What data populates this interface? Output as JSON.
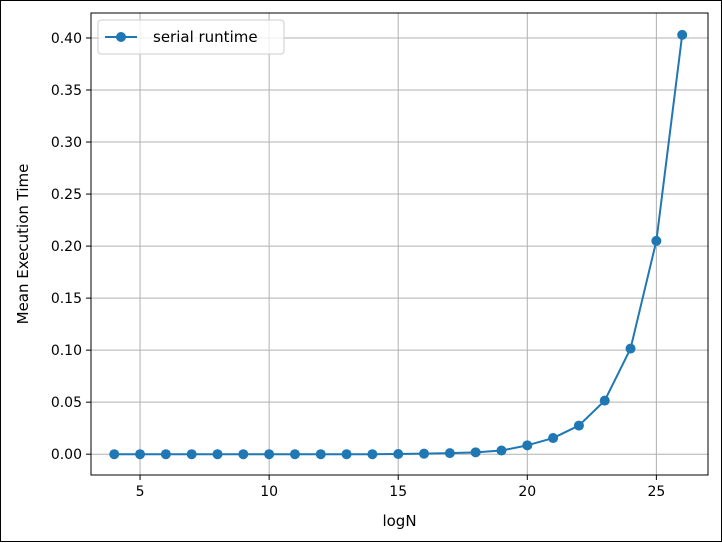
{
  "chart_data": {
    "type": "line",
    "title": "",
    "xlabel": "logN",
    "ylabel": "Mean Execution Time",
    "xlim": [
      3.1,
      27.0
    ],
    "ylim": [
      -0.02,
      0.424
    ],
    "grid": true,
    "legend_placement": "top-left",
    "x_ticks": [
      5,
      10,
      15,
      20,
      25
    ],
    "x_tick_labels": [
      "5",
      "10",
      "15",
      "20",
      "25"
    ],
    "y_ticks": [
      0.0,
      0.05,
      0.1,
      0.15,
      0.2,
      0.25,
      0.3,
      0.35,
      0.4
    ],
    "y_tick_labels": [
      "0.00",
      "0.05",
      "0.10",
      "0.15",
      "0.20",
      "0.25",
      "0.30",
      "0.35",
      "0.40"
    ],
    "series": [
      {
        "name": "serial runtime",
        "color": "#1f77b4",
        "marker": "circle",
        "x": [
          4,
          5,
          6,
          7,
          8,
          9,
          10,
          11,
          12,
          13,
          14,
          15,
          16,
          17,
          18,
          19,
          20,
          21,
          22,
          23,
          24,
          25,
          26
        ],
        "y": [
          0.0,
          0.0,
          0.0,
          0.0,
          0.0,
          0.0,
          0.0,
          0.0,
          0.0,
          0.0,
          0.0,
          0.0002,
          0.0005,
          0.001,
          0.0018,
          0.0035,
          0.0085,
          0.0155,
          0.0275,
          0.0515,
          0.1015,
          0.205,
          0.403
        ]
      }
    ]
  }
}
